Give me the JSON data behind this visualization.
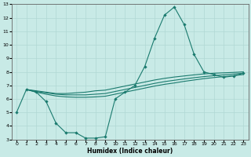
{
  "xlabel": "Humidex (Indice chaleur)",
  "background_color": "#c8eae6",
  "line_color": "#1a7a6e",
  "grid_color": "#b0d8d4",
  "xlim": [
    -0.5,
    23.5
  ],
  "ylim": [
    3,
    13
  ],
  "xticks": [
    0,
    1,
    2,
    3,
    4,
    5,
    6,
    7,
    8,
    9,
    10,
    11,
    12,
    13,
    14,
    15,
    16,
    17,
    18,
    19,
    20,
    21,
    22,
    23
  ],
  "yticks": [
    3,
    4,
    5,
    6,
    7,
    8,
    9,
    10,
    11,
    12,
    13
  ],
  "line1_x": [
    0,
    1,
    2,
    3,
    4,
    5,
    6,
    7,
    8,
    9,
    10,
    11,
    12,
    13,
    14,
    15,
    16,
    17,
    18,
    19,
    20,
    21,
    22,
    23
  ],
  "line1_y": [
    5.0,
    6.7,
    6.5,
    5.8,
    4.2,
    3.5,
    3.5,
    3.1,
    3.1,
    3.2,
    6.0,
    6.5,
    7.0,
    8.4,
    10.5,
    12.2,
    12.8,
    11.5,
    9.3,
    8.0,
    7.8,
    7.6,
    7.7,
    7.9
  ],
  "line2_x": [
    1,
    2,
    3,
    4,
    5,
    6,
    7,
    8,
    9,
    10,
    11,
    12,
    13,
    14,
    15,
    16,
    17,
    18,
    19,
    20,
    21,
    22,
    23
  ],
  "line2_y": [
    6.7,
    6.6,
    6.5,
    6.4,
    6.4,
    6.45,
    6.5,
    6.6,
    6.65,
    6.8,
    6.95,
    7.1,
    7.25,
    7.4,
    7.52,
    7.62,
    7.7,
    7.78,
    7.85,
    7.9,
    7.93,
    7.96,
    8.0
  ],
  "line3_x": [
    1,
    2,
    3,
    4,
    5,
    6,
    7,
    8,
    9,
    10,
    11,
    12,
    13,
    14,
    15,
    16,
    17,
    18,
    19,
    20,
    21,
    22,
    23
  ],
  "line3_y": [
    6.7,
    6.55,
    6.45,
    6.35,
    6.3,
    6.3,
    6.3,
    6.35,
    6.4,
    6.55,
    6.7,
    6.85,
    7.0,
    7.15,
    7.28,
    7.38,
    7.48,
    7.57,
    7.65,
    7.72,
    7.78,
    7.84,
    7.9
  ],
  "line4_x": [
    1,
    2,
    3,
    4,
    5,
    6,
    7,
    8,
    9,
    10,
    11,
    12,
    13,
    14,
    15,
    16,
    17,
    18,
    19,
    20,
    21,
    22,
    23
  ],
  "line4_y": [
    6.7,
    6.5,
    6.35,
    6.22,
    6.15,
    6.12,
    6.12,
    6.15,
    6.2,
    6.35,
    6.5,
    6.65,
    6.8,
    6.95,
    7.08,
    7.18,
    7.3,
    7.4,
    7.5,
    7.58,
    7.65,
    7.72,
    7.8
  ]
}
